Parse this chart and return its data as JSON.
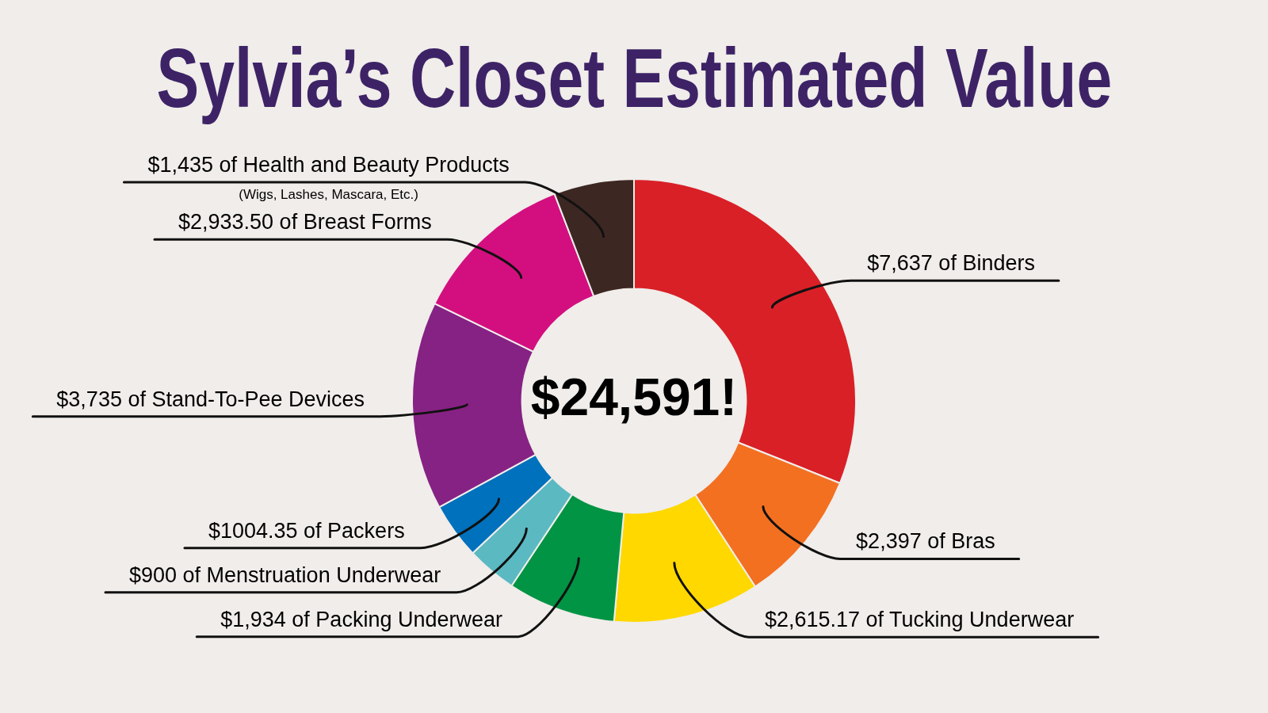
{
  "chart_data": {
    "type": "donut",
    "title": "Sylvia’s Closet Estimated Value",
    "categories": [
      "$7,637 of Binders",
      "$2,397 of Bras",
      "$2,615.17 of Tucking Underwear",
      "$1,934 of Packing Underwear",
      "$900 of Menstruation Underwear",
      "$1004.35 of Packers",
      "$3,735 of Stand-To-Pee Devices",
      "$2,933.50 of Breast Forms",
      "$1,435 of Health and Beauty Products"
    ],
    "values": [
      7637,
      2397,
      2615.17,
      1934,
      900,
      1004.35,
      3735,
      2933.5,
      1435
    ],
    "colors": [
      "#d92027",
      "#f37021",
      "#ffd800",
      "#009444",
      "#5bb9c2",
      "#0071bc",
      "#862284",
      "#d30f80",
      "#3d2722"
    ],
    "annotations": [
      "$24,591!",
      {
        "text": "(Wigs, Lashes, Mascara, Etc.)",
        "x": "$1,435 of Health and Beauty Products"
      }
    ]
  }
}
